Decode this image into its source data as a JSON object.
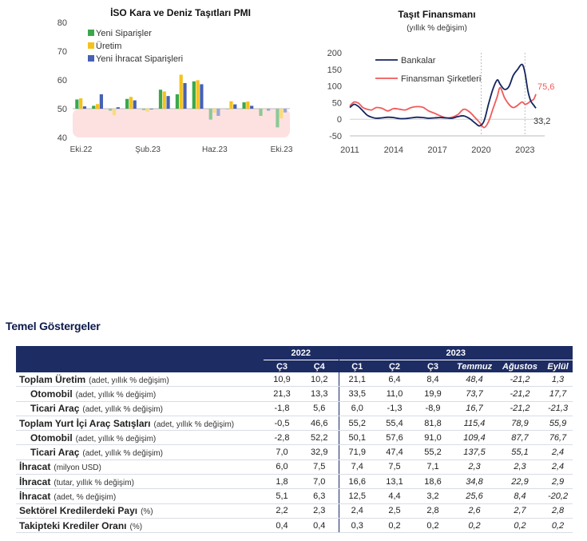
{
  "charts_area": {
    "pmi": {
      "title": "İSO Kara ve Deniz Taşıtları PMI",
      "legend": [
        "Yeni Siparişler",
        "Üretim",
        "Yeni İhracat Siparişleri"
      ],
      "colors": [
        "#3aa84a",
        "#f6c21a",
        "#4661b3"
      ],
      "muted_colors": [
        "#8dc897",
        "#f9dc7a",
        "#9aa7d4"
      ],
      "y_ticks": [
        "40",
        "50",
        "60",
        "70",
        "80"
      ],
      "x_ticks": [
        "Eki.22",
        "Şub.23",
        "Haz.23",
        "Eki.23"
      ]
    },
    "finance": {
      "title": "Taşıt Finansmanı",
      "subtitle": "(yıllık % değişim)",
      "y_ticks": [
        "-50",
        "0",
        "50",
        "100",
        "150",
        "200"
      ],
      "x_ticks": [
        "2011",
        "2014",
        "2017",
        "2020",
        "2023"
      ],
      "legend": [
        "Bankalar",
        "Finansman Şirketleri"
      ],
      "colors": [
        "#14245e",
        "#f15a5a"
      ],
      "end_label_bank": "33,2",
      "end_label_fin": "75,6"
    }
  },
  "chart_data": [
    {
      "type": "bar",
      "title": "İSO Kara ve Deniz Taşıtları PMI",
      "categories": [
        "Eki.22",
        "Kas.22",
        "Ara.22",
        "Oca.23",
        "Şub.23",
        "Mar.23",
        "Nis.23",
        "May.23",
        "Haz.23",
        "Tem.23",
        "Ağu.23",
        "Eyl.23",
        "Eki.23"
      ],
      "x_tick_labels": [
        "Eki.22",
        "Şub.23",
        "Haz.23",
        "Eki.23"
      ],
      "series": [
        {
          "name": "Yeni Siparişler",
          "values": [
            53.2,
            51.0,
            49.3,
            53.4,
            49.5,
            56.6,
            55.0,
            59.5,
            46.2,
            49.8,
            52.2,
            47.5,
            43.5
          ]
        },
        {
          "name": "Üretim",
          "values": [
            53.6,
            51.6,
            47.7,
            54.1,
            49.0,
            56.0,
            61.8,
            59.9,
            48.6,
            52.6,
            52.5,
            49.9,
            46.6
          ]
        },
        {
          "name": "Yeni İhracat Siparişleri",
          "values": [
            50.8,
            55.0,
            50.5,
            52.9,
            50.0,
            54.4,
            58.9,
            58.5,
            47.5,
            51.5,
            51.0,
            49.3,
            48.7
          ]
        }
      ],
      "ylim": [
        40,
        80
      ],
      "band": [
        40,
        50
      ],
      "baseline": 50
    },
    {
      "type": "line",
      "title": "Taşıt Finansmanı",
      "subtitle": "(yıllık % değişim)",
      "x_ticks": [
        "2011",
        "2014",
        "2017",
        "2020",
        "2023"
      ],
      "ylim": [
        -50,
        200
      ],
      "series": [
        {
          "name": "Bankalar",
          "x": [
            2011.0,
            2011.3,
            2011.6,
            2011.9,
            2012.2,
            2012.5,
            2012.8,
            2013.2,
            2013.6,
            2014.0,
            2014.4,
            2014.8,
            2015.2,
            2015.6,
            2016.0,
            2016.4,
            2016.8,
            2017.2,
            2017.6,
            2018.0,
            2018.4,
            2018.8,
            2019.2,
            2019.6,
            2019.9,
            2020.2,
            2020.5,
            2020.8,
            2021.1,
            2021.3,
            2021.6,
            2021.9,
            2022.2,
            2022.5,
            2022.8,
            2023.0,
            2023.2,
            2023.4,
            2023.6,
            2023.75
          ],
          "y": [
            35,
            45,
            38,
            25,
            12,
            6,
            3,
            4,
            6,
            5,
            2,
            2,
            4,
            6,
            5,
            3,
            4,
            5,
            4,
            3,
            8,
            10,
            2,
            -12,
            -20,
            -5,
            45,
            90,
            118,
            105,
            90,
            98,
            132,
            150,
            165,
            140,
            85,
            55,
            42,
            33.2
          ]
        },
        {
          "name": "Finansman Şirketleri",
          "x": [
            2011.0,
            2011.3,
            2011.6,
            2011.9,
            2012.2,
            2012.5,
            2012.8,
            2013.2,
            2013.6,
            2014.0,
            2014.4,
            2014.8,
            2015.2,
            2015.6,
            2016.0,
            2016.4,
            2016.8,
            2017.2,
            2017.6,
            2018.0,
            2018.4,
            2018.8,
            2019.2,
            2019.6,
            2019.9,
            2020.2,
            2020.5,
            2020.8,
            2021.1,
            2021.3,
            2021.6,
            2021.9,
            2022.2,
            2022.5,
            2022.8,
            2023.0,
            2023.2,
            2023.4,
            2023.6,
            2023.75
          ],
          "y": [
            40,
            52,
            48,
            35,
            30,
            28,
            35,
            33,
            25,
            32,
            30,
            28,
            35,
            38,
            36,
            25,
            18,
            10,
            4,
            6,
            14,
            30,
            22,
            4,
            -10,
            -25,
            -8,
            30,
            68,
            95,
            65,
            45,
            35,
            42,
            52,
            45,
            48,
            55,
            60,
            75.6
          ]
        }
      ]
    }
  ],
  "indicators": {
    "title": "Temel Göstergeler",
    "group_headers": [
      "2022",
      "2023"
    ],
    "columns": [
      "Ç3",
      "Ç4",
      "Ç1",
      "Ç2",
      "Ç3",
      "Temmuz",
      "Ağustos",
      "Eylül"
    ],
    "rows": [
      {
        "label": "Toplam Üretim",
        "unit": "(adet, yıllık % değişim)",
        "sub": false,
        "values": [
          "10,9",
          "10,2",
          "21,1",
          "6,4",
          "8,4",
          "48,4",
          "-21,2",
          "1,3"
        ]
      },
      {
        "label": "Otomobil",
        "unit": "(adet, yıllık % değişim)",
        "sub": true,
        "values": [
          "21,3",
          "13,3",
          "33,5",
          "11,0",
          "19,9",
          "73,7",
          "-21,2",
          "17,7"
        ]
      },
      {
        "label": "Ticari Araç",
        "unit": "(adet, yıllık % değişim)",
        "sub": true,
        "values": [
          "-1,8",
          "5,6",
          "6,0",
          "-1,3",
          "-8,9",
          "16,7",
          "-21,2",
          "-21,3"
        ]
      },
      {
        "label": "Toplam Yurt İçi Araç Satışları",
        "unit": "(adet, yıllık % değişim)",
        "sub": false,
        "values": [
          "-0,5",
          "46,6",
          "55,2",
          "55,4",
          "81,8",
          "115,4",
          "78,9",
          "55,9"
        ]
      },
      {
        "label": "Otomobil",
        "unit": "(adet, yıllık % değişim)",
        "sub": true,
        "values": [
          "-2,8",
          "52,2",
          "50,1",
          "57,6",
          "91,0",
          "109,4",
          "87,7",
          "76,7"
        ]
      },
      {
        "label": "Ticari Araç",
        "unit": "(adet, yıllık % değişim)",
        "sub": true,
        "values": [
          "7,0",
          "32,9",
          "71,9",
          "47,4",
          "55,2",
          "137,5",
          "55,1",
          "2,4"
        ]
      },
      {
        "label": "İhracat",
        "unit": "(milyon USD)",
        "sub": false,
        "values": [
          "6,0",
          "7,5",
          "7,4",
          "7,5",
          "7,1",
          "2,3",
          "2,3",
          "2,4"
        ]
      },
      {
        "label": "İhracat",
        "unit": "(tutar, yıllık % değişim)",
        "sub": false,
        "values": [
          "1,8",
          "7,0",
          "16,6",
          "13,1",
          "18,6",
          "34,8",
          "22,9",
          "2,9"
        ]
      },
      {
        "label": "İhracat",
        "unit": "(adet, % değişim)",
        "sub": false,
        "values": [
          "5,1",
          "6,3",
          "12,5",
          "4,4",
          "3,2",
          "25,6",
          "8,4",
          "-20,2"
        ]
      },
      {
        "label": "Sektörel Kredilerdeki Payı",
        "unit": "(%)",
        "sub": false,
        "values": [
          "2,2",
          "2,3",
          "2,4",
          "2,5",
          "2,8",
          "2,6",
          "2,7",
          "2,8"
        ]
      },
      {
        "label": "Takipteki Krediler Oranı",
        "unit": "(%)",
        "sub": false,
        "values": [
          "0,4",
          "0,4",
          "0,3",
          "0,2",
          "0,2",
          "0,2",
          "0,2",
          "0,2"
        ]
      }
    ]
  }
}
